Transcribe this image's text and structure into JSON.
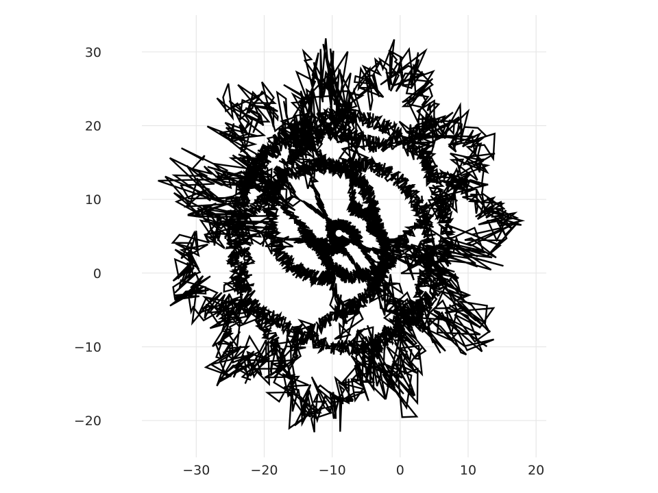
{
  "chart_data": {
    "type": "line",
    "title": "",
    "xlabel": "",
    "ylabel": "",
    "xlim": [
      -38,
      21.5
    ],
    "ylim": [
      -25,
      35
    ],
    "aspect": "equal",
    "grid": true,
    "legend": "none",
    "line_color": "#000000",
    "grid_color": "#e6e6e6",
    "background": "#ffffff",
    "x_ticks": [
      {
        "value": -30,
        "label": "−30"
      },
      {
        "value": -20,
        "label": "−20"
      },
      {
        "value": -10,
        "label": "−10"
      },
      {
        "value": 0,
        "label": "0"
      },
      {
        "value": 10,
        "label": "10"
      },
      {
        "value": 20,
        "label": "20"
      }
    ],
    "y_ticks": [
      {
        "value": -20,
        "label": "−20"
      },
      {
        "value": -10,
        "label": "−10"
      },
      {
        "value": 0,
        "label": "0"
      },
      {
        "value": 10,
        "label": "10"
      },
      {
        "value": 20,
        "label": "20"
      },
      {
        "value": 30,
        "label": "30"
      }
    ],
    "series": [
      {
        "description_of_shape": "closed epicycloid-like curve with 11 jagged outer lobes",
        "center": [
          -9,
          5.4
        ],
        "inner_hole_radius": 0.8,
        "dense_core_radius": 16,
        "outer_envelope_radius": 26,
        "lobe_count": 11,
        "lobe_radius": 7
      }
    ]
  }
}
